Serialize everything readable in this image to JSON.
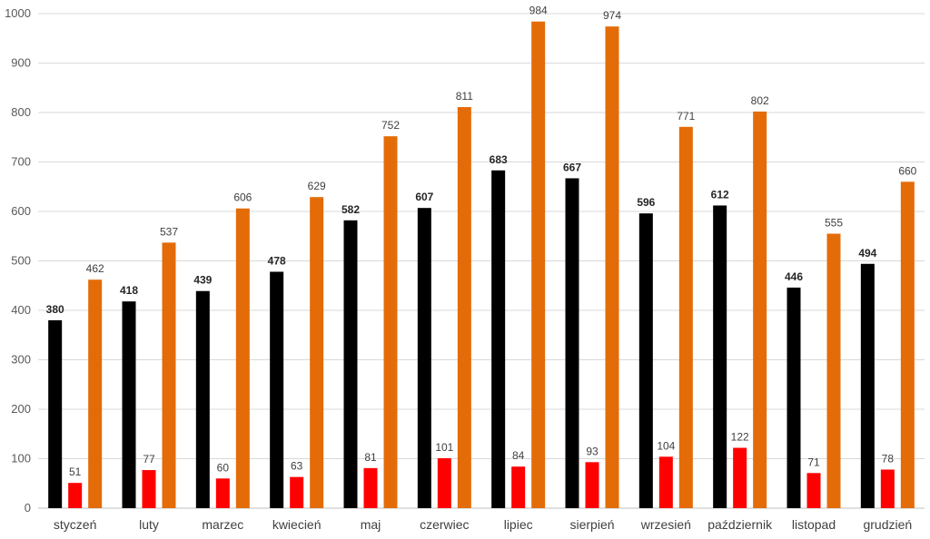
{
  "chart_data": {
    "type": "bar",
    "title": "",
    "xlabel": "",
    "ylabel": "",
    "ylim": [
      0,
      1000
    ],
    "yticks": [
      0,
      100,
      200,
      300,
      400,
      500,
      600,
      700,
      800,
      900,
      1000
    ],
    "grid": true,
    "categories": [
      "styczeń",
      "luty",
      "marzec",
      "kwiecień",
      "maj",
      "czerwiec",
      "lipiec",
      "sierpień",
      "wrzesień",
      "październik",
      "listopad",
      "grudzień"
    ],
    "series": [
      {
        "color": "#000000",
        "label_bold": true,
        "values": [
          380,
          418,
          439,
          478,
          582,
          607,
          683,
          667,
          596,
          612,
          446,
          494
        ]
      },
      {
        "color": "#ff0000",
        "label_bold": false,
        "values": [
          51,
          77,
          60,
          63,
          81,
          101,
          84,
          93,
          104,
          122,
          71,
          78
        ]
      },
      {
        "color": "#e36c09",
        "label_bold": false,
        "values": [
          462,
          537,
          606,
          629,
          752,
          811,
          984,
          974,
          771,
          802,
          555,
          660
        ]
      }
    ]
  }
}
